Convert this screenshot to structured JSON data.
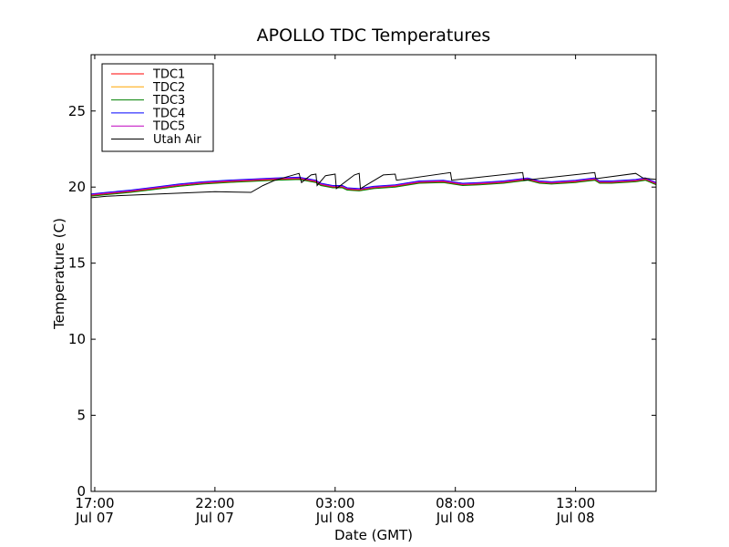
{
  "chart_data": {
    "type": "line",
    "title": "APOLLO TDC Temperatures",
    "xlabel": "Date (GMT)",
    "ylabel": "Temperature (C)",
    "xlim_hours": [
      16.85,
      40.35
    ],
    "ylim": [
      0,
      28.7
    ],
    "grid": false,
    "legend_placement": "top-left",
    "x_ticks": [
      {
        "hour": 17,
        "label_time": "17:00",
        "label_date": "Jul 07"
      },
      {
        "hour": 22,
        "label_time": "22:00",
        "label_date": "Jul 07"
      },
      {
        "hour": 27,
        "label_time": "03:00",
        "label_date": "Jul 08"
      },
      {
        "hour": 32,
        "label_time": "08:00",
        "label_date": "Jul 08"
      },
      {
        "hour": 37,
        "label_time": "13:00",
        "label_date": "Jul 08"
      }
    ],
    "y_ticks": [
      {
        "value": 0,
        "label": "0"
      },
      {
        "value": 5,
        "label": "5"
      },
      {
        "value": 10,
        "label": "10"
      },
      {
        "value": 15,
        "label": "15"
      },
      {
        "value": 20,
        "label": "20"
      },
      {
        "value": 25,
        "label": "25"
      }
    ],
    "series": [
      {
        "name": "TDC1",
        "color": "#ff0000",
        "x": [
          16.85,
          17.5,
          18.5,
          19.5,
          20.5,
          21.5,
          22.5,
          23.5,
          24.5,
          25.5,
          26.2,
          26.4,
          26.9,
          27.3,
          27.5,
          28.0,
          28.6,
          29.5,
          30.5,
          31.5,
          32.3,
          33.0,
          34.0,
          35.0,
          35.5,
          36.0,
          37.0,
          37.8,
          38.0,
          38.5,
          39.5,
          39.9,
          40.35
        ],
        "y": [
          19.45,
          19.55,
          19.7,
          19.9,
          20.1,
          20.25,
          20.35,
          20.42,
          20.5,
          20.55,
          20.35,
          20.15,
          20.0,
          20.0,
          19.85,
          19.8,
          19.95,
          20.05,
          20.3,
          20.35,
          20.15,
          20.2,
          20.3,
          20.5,
          20.3,
          20.25,
          20.35,
          20.5,
          20.3,
          20.3,
          20.4,
          20.5,
          20.2
        ]
      },
      {
        "name": "TDC2",
        "color": "#ffa500",
        "x": [
          16.85,
          17.5,
          18.5,
          19.5,
          20.5,
          21.5,
          22.5,
          23.5,
          24.5,
          25.5,
          26.2,
          26.4,
          26.9,
          27.3,
          27.5,
          28.0,
          28.6,
          29.5,
          30.5,
          31.5,
          32.3,
          33.0,
          34.0,
          35.0,
          35.5,
          36.0,
          37.0,
          37.8,
          38.0,
          38.5,
          39.5,
          39.9,
          40.35
        ],
        "y": [
          19.5,
          19.6,
          19.75,
          19.95,
          20.15,
          20.3,
          20.4,
          20.47,
          20.55,
          20.6,
          20.4,
          20.2,
          20.05,
          20.05,
          19.9,
          19.85,
          20.0,
          20.1,
          20.35,
          20.4,
          20.2,
          20.25,
          20.35,
          20.55,
          20.35,
          20.3,
          20.4,
          20.55,
          20.35,
          20.35,
          20.45,
          20.55,
          20.25
        ]
      },
      {
        "name": "TDC3",
        "color": "#008000",
        "x": [
          16.85,
          17.5,
          18.5,
          19.5,
          20.5,
          21.5,
          22.5,
          23.5,
          24.5,
          25.5,
          26.2,
          26.4,
          26.9,
          27.3,
          27.5,
          28.0,
          28.6,
          29.5,
          30.5,
          31.5,
          32.3,
          33.0,
          34.0,
          35.0,
          35.5,
          36.0,
          37.0,
          37.8,
          38.0,
          38.5,
          39.5,
          39.9,
          40.35
        ],
        "y": [
          19.4,
          19.5,
          19.65,
          19.85,
          20.05,
          20.2,
          20.3,
          20.37,
          20.45,
          20.5,
          20.3,
          20.1,
          19.95,
          19.95,
          19.8,
          19.75,
          19.9,
          20.0,
          20.25,
          20.3,
          20.1,
          20.15,
          20.25,
          20.45,
          20.25,
          20.2,
          20.3,
          20.45,
          20.25,
          20.25,
          20.35,
          20.45,
          20.15
        ]
      },
      {
        "name": "TDC4",
        "color": "#0000ff",
        "x": [
          16.85,
          17.5,
          18.5,
          19.5,
          20.5,
          21.5,
          22.5,
          23.5,
          24.5,
          25.5,
          26.2,
          26.4,
          26.9,
          27.3,
          27.5,
          28.0,
          28.6,
          29.5,
          30.5,
          31.5,
          32.3,
          33.0,
          34.0,
          35.0,
          35.5,
          36.0,
          37.0,
          37.8,
          38.0,
          38.5,
          39.5,
          39.9,
          40.35
        ],
        "y": [
          19.55,
          19.65,
          19.8,
          20.0,
          20.2,
          20.35,
          20.45,
          20.52,
          20.6,
          20.65,
          20.45,
          20.25,
          20.1,
          20.1,
          19.95,
          19.9,
          20.05,
          20.15,
          20.4,
          20.45,
          20.25,
          20.3,
          20.4,
          20.6,
          20.4,
          20.35,
          20.45,
          20.6,
          20.4,
          20.4,
          20.5,
          20.6,
          20.3
        ]
      },
      {
        "name": "TDC5",
        "color": "#bf00bf",
        "x": [
          16.85,
          17.5,
          18.5,
          19.5,
          20.5,
          21.5,
          22.5,
          23.5,
          24.5,
          25.5,
          26.2,
          26.4,
          26.9,
          27.3,
          27.5,
          28.0,
          28.6,
          29.5,
          30.5,
          31.5,
          32.3,
          33.0,
          34.0,
          35.0,
          35.5,
          36.0,
          37.0,
          37.8,
          38.0,
          38.5,
          39.5,
          39.9,
          40.35
        ],
        "y": [
          19.5,
          19.6,
          19.75,
          19.95,
          20.15,
          20.3,
          20.4,
          20.47,
          20.55,
          20.6,
          20.4,
          20.2,
          20.05,
          20.05,
          19.9,
          19.85,
          20.0,
          20.1,
          20.35,
          20.4,
          20.2,
          20.25,
          20.35,
          20.55,
          20.35,
          20.3,
          20.4,
          20.55,
          20.35,
          20.35,
          20.45,
          20.55,
          20.25
        ]
      },
      {
        "name": "Utah Air",
        "color": "#000000",
        "x": [
          16.85,
          17.5,
          19.0,
          20.5,
          22.0,
          23.5,
          24.0,
          24.5,
          25.5,
          25.6,
          26.0,
          26.2,
          26.25,
          26.6,
          27.0,
          27.05,
          27.8,
          28.0,
          28.05,
          29.0,
          29.5,
          29.55,
          31.8,
          31.85,
          34.8,
          34.85,
          37.8,
          37.85,
          39.5,
          39.8,
          40.35
        ],
        "y": [
          19.3,
          19.4,
          19.5,
          19.6,
          19.7,
          19.65,
          20.1,
          20.45,
          20.9,
          20.3,
          20.8,
          20.85,
          20.1,
          20.75,
          20.85,
          19.9,
          20.8,
          20.9,
          19.9,
          20.8,
          20.85,
          20.45,
          20.95,
          20.45,
          20.95,
          20.45,
          20.95,
          20.55,
          20.9,
          20.6,
          20.5
        ]
      }
    ]
  }
}
